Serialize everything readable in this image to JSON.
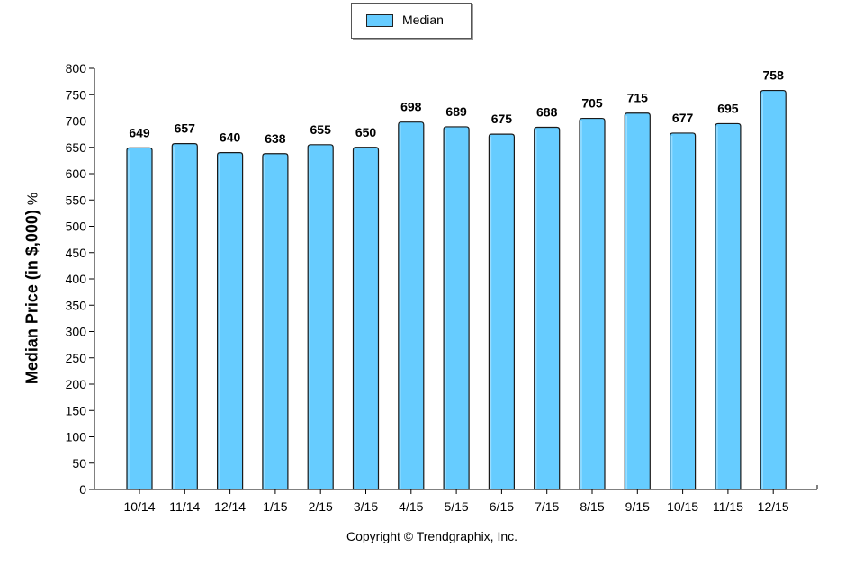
{
  "chart_data": {
    "type": "bar",
    "ylabel": "Median Price (in $,000)",
    "ylabel_suffix": "%",
    "categories": [
      "10/14",
      "11/14",
      "12/14",
      "1/15",
      "2/15",
      "3/15",
      "4/15",
      "5/15",
      "6/15",
      "7/15",
      "8/15",
      "9/15",
      "10/15",
      "11/15",
      "12/15"
    ],
    "series": [
      {
        "name": "Median",
        "values": [
          649,
          657,
          640,
          638,
          655,
          650,
          698,
          689,
          675,
          688,
          705,
          715,
          677,
          695,
          758
        ]
      }
    ],
    "ylim": [
      0,
      800
    ],
    "ytick_step": 50,
    "data_labels": true,
    "legend": "top-center",
    "grid": false,
    "colors": {
      "bar": "#66ccff",
      "bar_edge": "#1a1a1a",
      "axis": "#000000"
    }
  },
  "footer": {
    "copyright": "Copyright © Trendgraphix, Inc."
  }
}
